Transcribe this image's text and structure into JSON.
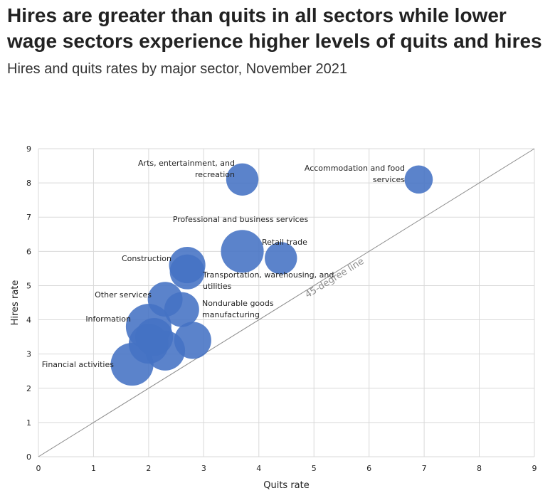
{
  "header": {
    "title": "Hires are greater than quits in all sectors while lower wage sectors experience higher levels of quits and hires",
    "subtitle": "Hires and quits rates by major sector, November 2021"
  },
  "colors": {
    "bubble": "#4472c4",
    "grid": "#d9d9d9",
    "diagonal": "#8c8c8c",
    "text": "#222222"
  },
  "chart_data": {
    "type": "scatter",
    "xlabel": "Quits rate",
    "ylabel": "Hires rate",
    "xlim": [
      0,
      9
    ],
    "ylim": [
      0,
      9
    ],
    "xticks": [
      0,
      1,
      2,
      3,
      4,
      5,
      6,
      7,
      8,
      9
    ],
    "yticks": [
      0,
      1,
      2,
      3,
      4,
      5,
      6,
      7,
      8,
      9
    ],
    "grid": true,
    "reference_line": {
      "label": "45-degree line",
      "from": [
        0,
        0
      ],
      "to": [
        9,
        9
      ]
    },
    "points": [
      {
        "label": "Arts, entertainment, and recreation",
        "x": 3.7,
        "y": 8.1,
        "size": 1
      },
      {
        "label": "Accommodation and food services",
        "x": 6.9,
        "y": 8.1,
        "size": 0.6
      },
      {
        "label": "Professional and business services",
        "x": 3.7,
        "y": 6.0,
        "size": 2.5
      },
      {
        "label": "Retail trade",
        "x": 4.4,
        "y": 5.8,
        "size": 1
      },
      {
        "label": "Construction",
        "x": 2.7,
        "y": 5.6,
        "size": 1.5
      },
      {
        "label": "Transportation, warehousing, and utilities",
        "x": 2.7,
        "y": 5.4,
        "size": 1.3
      },
      {
        "label": "Other services",
        "x": 2.3,
        "y": 4.6,
        "size": 1.3
      },
      {
        "label": "Nondurable goods manufacturing",
        "x": 2.6,
        "y": 4.3,
        "size": 1.3
      },
      {
        "label": "Information",
        "x": 2.0,
        "y": 3.8,
        "size": 3
      },
      {
        "label": "",
        "x": 2.1,
        "y": 3.5,
        "size": 1.7
      },
      {
        "label": "",
        "x": 2.8,
        "y": 3.4,
        "size": 1.6
      },
      {
        "label": "",
        "x": 2.0,
        "y": 3.3,
        "size": 2
      },
      {
        "label": "",
        "x": 2.3,
        "y": 3.1,
        "size": 2
      },
      {
        "label": "Financial activities",
        "x": 1.7,
        "y": 2.7,
        "size": 2.5
      }
    ]
  }
}
